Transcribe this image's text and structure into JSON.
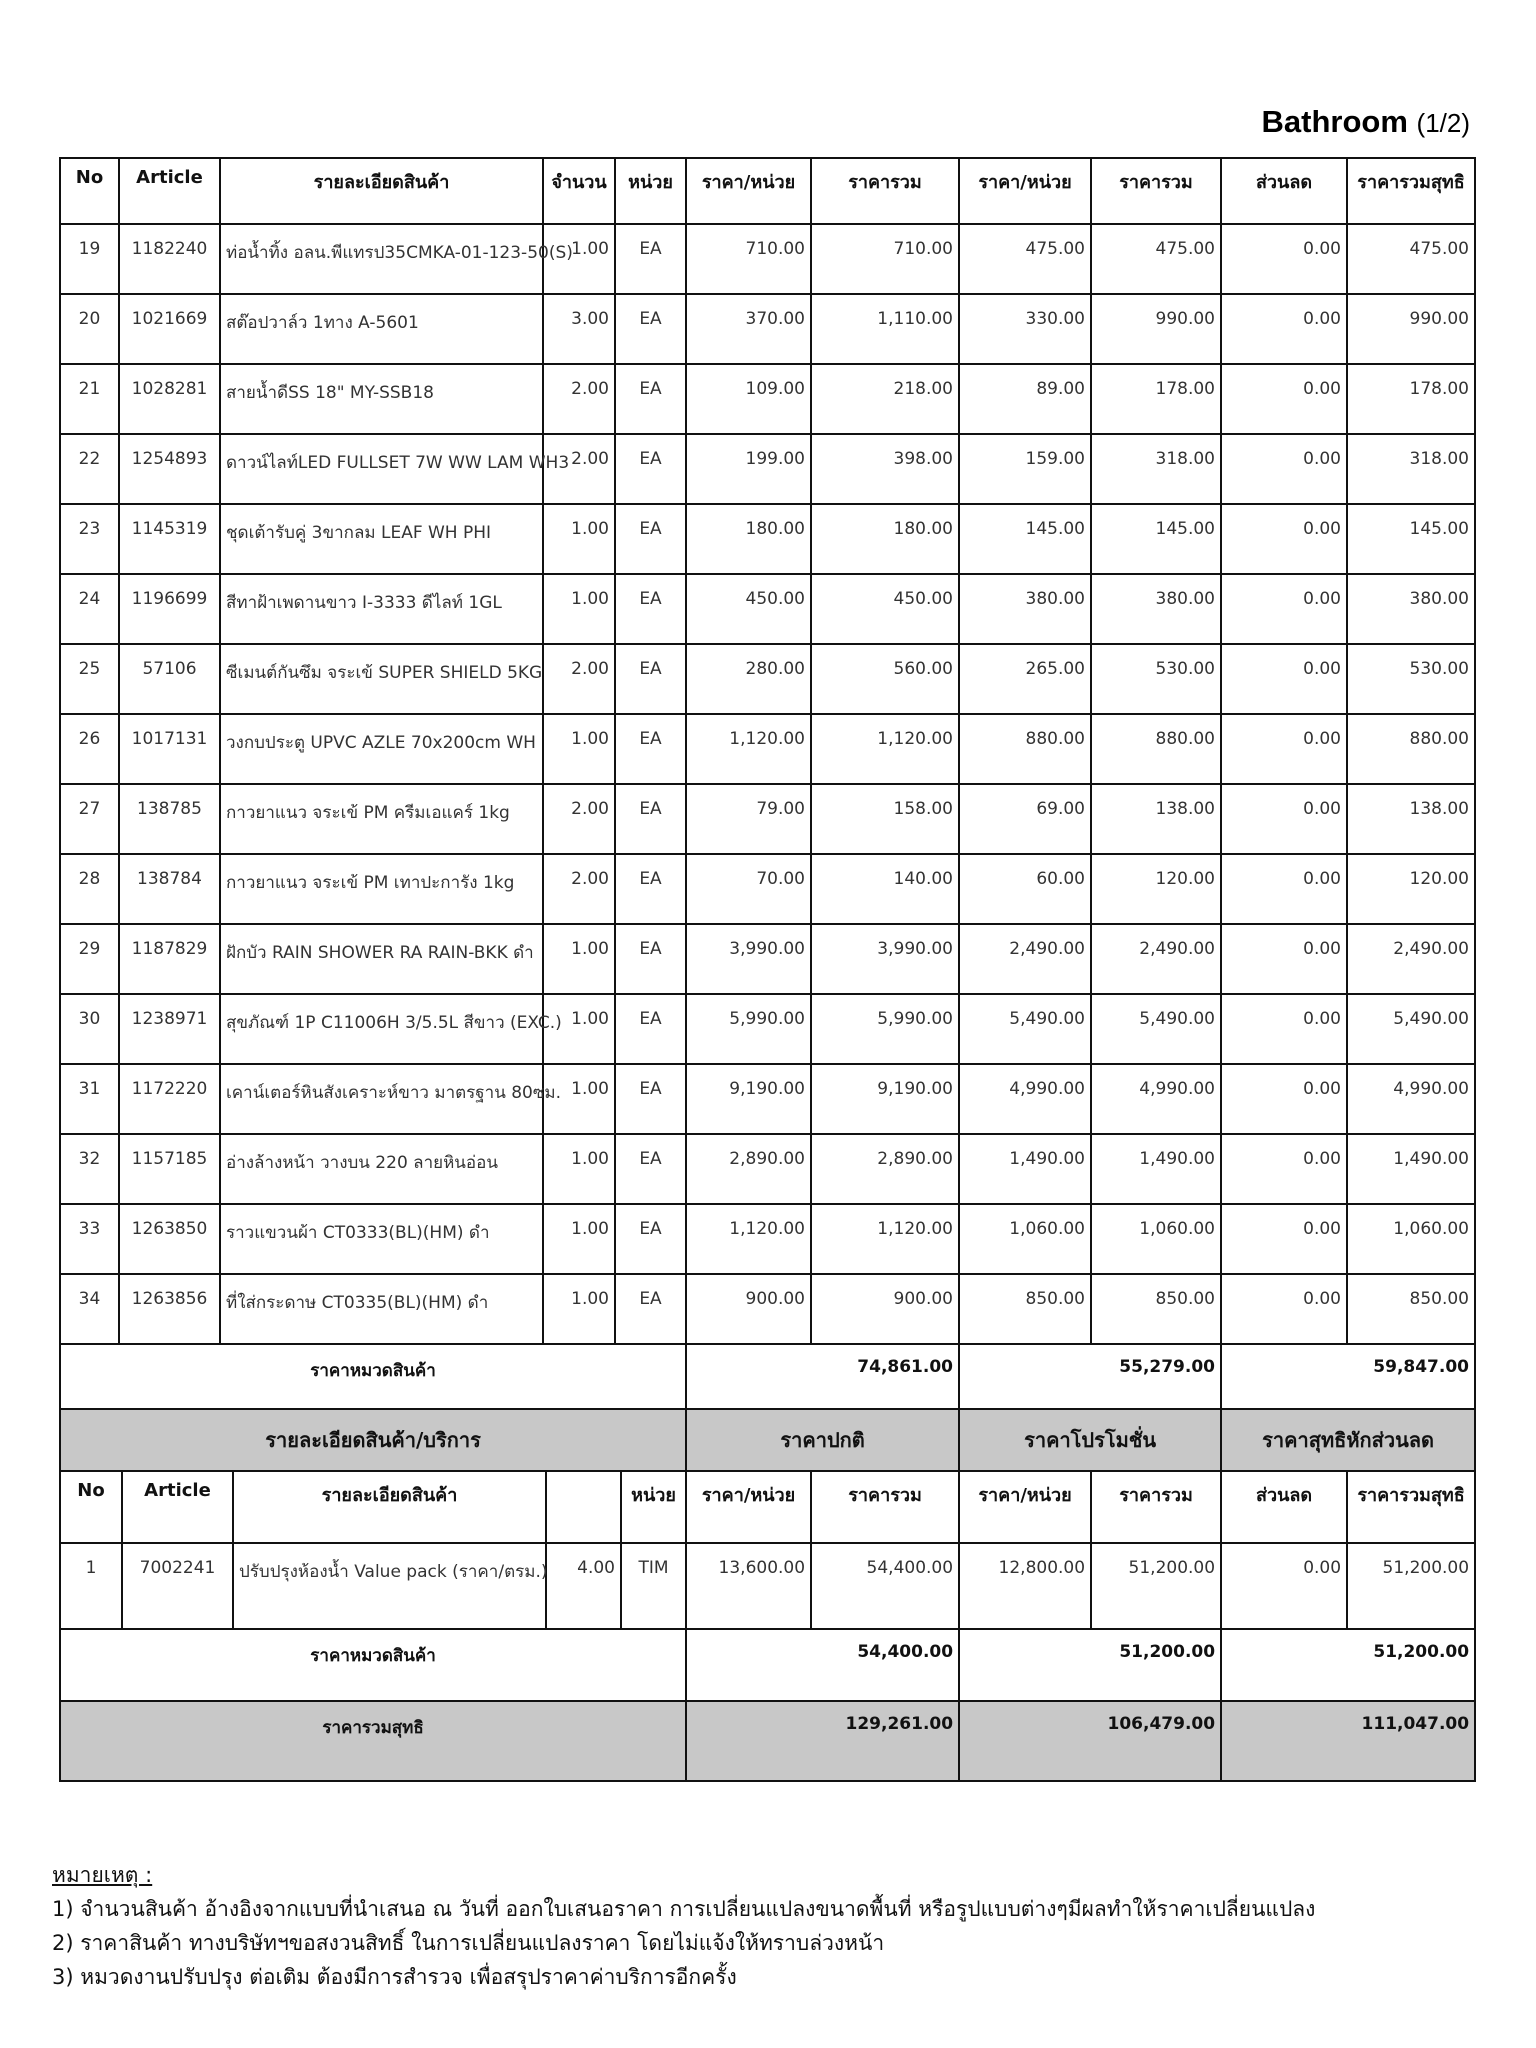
{
  "title": {
    "main": "Bathroom",
    "page": "(1/2)"
  },
  "table1": {
    "headers": [
      "No",
      "Article",
      "รายละเอียดสินค้า",
      "จำนวน",
      "หน่วย",
      "ราคา/หน่วย",
      "ราคารวม",
      "ราคา/หน่วย",
      "ราคารวม",
      "ส่วนลด",
      "ราคารวมสุทธิ"
    ],
    "rows": [
      [
        "19",
        "1182240",
        "ท่อน้ำทิ้ง อลน.พีแทรป35CMKA-01-123-50(S)",
        "1.00",
        "EA",
        "710.00",
        "710.00",
        "475.00",
        "475.00",
        "0.00",
        "475.00"
      ],
      [
        "20",
        "1021669",
        "สต๊อปวาล์ว 1ทาง A-5601",
        "3.00",
        "EA",
        "370.00",
        "1,110.00",
        "330.00",
        "990.00",
        "0.00",
        "990.00"
      ],
      [
        "21",
        "1028281",
        "สายน้ำดีSS 18\" MY-SSB18",
        "2.00",
        "EA",
        "109.00",
        "218.00",
        "89.00",
        "178.00",
        "0.00",
        "178.00"
      ],
      [
        "22",
        "1254893",
        "ดาวน์ไลท์LED FULLSET 7W WW LAM WH3",
        "2.00",
        "EA",
        "199.00",
        "398.00",
        "159.00",
        "318.00",
        "0.00",
        "318.00"
      ],
      [
        "23",
        "1145319",
        "ชุดเต้ารับคู่ 3ขากลม LEAF WH PHI",
        "1.00",
        "EA",
        "180.00",
        "180.00",
        "145.00",
        "145.00",
        "0.00",
        "145.00"
      ],
      [
        "24",
        "1196699",
        "สีทาฝ้าเพดานขาว I-3333 ดีไลท์ 1GL",
        "1.00",
        "EA",
        "450.00",
        "450.00",
        "380.00",
        "380.00",
        "0.00",
        "380.00"
      ],
      [
        "25",
        "57106",
        "ซีเมนต์กันซึม จระเข้ SUPER SHIELD 5KG",
        "2.00",
        "EA",
        "280.00",
        "560.00",
        "265.00",
        "530.00",
        "0.00",
        "530.00"
      ],
      [
        "26",
        "1017131",
        "วงกบประตู UPVC AZLE 70x200cm WH",
        "1.00",
        "EA",
        "1,120.00",
        "1,120.00",
        "880.00",
        "880.00",
        "0.00",
        "880.00"
      ],
      [
        "27",
        "138785",
        "กาวยาแนว จระเข้ PM ครีมเอแคร์ 1kg",
        "2.00",
        "EA",
        "79.00",
        "158.00",
        "69.00",
        "138.00",
        "0.00",
        "138.00"
      ],
      [
        "28",
        "138784",
        "กาวยาแนว จระเข้ PM เทาปะการัง 1kg",
        "2.00",
        "EA",
        "70.00",
        "140.00",
        "60.00",
        "120.00",
        "0.00",
        "120.00"
      ],
      [
        "29",
        "1187829",
        "ฝักบัว RAIN SHOWER RA RAIN-BKK ดำ",
        "1.00",
        "EA",
        "3,990.00",
        "3,990.00",
        "2,490.00",
        "2,490.00",
        "0.00",
        "2,490.00"
      ],
      [
        "30",
        "1238971",
        "สุขภัณฑ์ 1P C11006H 3/5.5L สีขาว (EXC.)",
        "1.00",
        "EA",
        "5,990.00",
        "5,990.00",
        "5,490.00",
        "5,490.00",
        "0.00",
        "5,490.00"
      ],
      [
        "31",
        "1172220",
        "เคาน์เตอร์หินสังเคราะห์ขาว มาตรฐาน 80ซม.",
        "1.00",
        "EA",
        "9,190.00",
        "9,190.00",
        "4,990.00",
        "4,990.00",
        "0.00",
        "4,990.00"
      ],
      [
        "32",
        "1157185",
        "อ่างล้างหน้า วางบน 220 ลายหินอ่อน",
        "1.00",
        "EA",
        "2,890.00",
        "2,890.00",
        "1,490.00",
        "1,490.00",
        "0.00",
        "1,490.00"
      ],
      [
        "33",
        "1263850",
        "ราวแขวนผ้า CT0333(BL)(HM)  ดำ",
        "1.00",
        "EA",
        "1,120.00",
        "1,120.00",
        "1,060.00",
        "1,060.00",
        "0.00",
        "1,060.00"
      ],
      [
        "34",
        "1263856",
        "ที่ใส่กระดาษ CT0335(BL)(HM)  ดำ",
        "1.00",
        "EA",
        "900.00",
        "900.00",
        "850.00",
        "850.00",
        "0.00",
        "850.00"
      ]
    ],
    "subtotal": {
      "label": "ราคาหมวดสินค้า",
      "normal": "74,861.00",
      "promo": "55,279.00",
      "net": "59,847.00"
    }
  },
  "table2": {
    "groups": [
      "รายละเอียดสินค้า/บริการ",
      "ราคาปกติ",
      "ราคาโปรโมชั่น",
      "ราคาสุทธิหักส่วนลด"
    ],
    "headers": [
      "No",
      "Article",
      "รายละเอียดสินค้า",
      "",
      "หน่วย",
      "ราคา/หน่วย",
      "ราคารวม",
      "ราคา/หน่วย",
      "ราคารวม",
      "ส่วนลด",
      "ราคารวมสุทธิ"
    ],
    "rows": [
      [
        "1",
        "7002241",
        "ปรับปรุงห้องน้ำ Value pack (ราคา/ตรม.)",
        "4.00",
        "TIM",
        "13,600.00",
        "54,400.00",
        "12,800.00",
        "51,200.00",
        "0.00",
        "51,200.00"
      ]
    ],
    "subtotal": {
      "label": "ราคาหมวดสินค้า",
      "normal": "54,400.00",
      "promo": "51,200.00",
      "net": "51,200.00"
    },
    "grand_total": {
      "label": "ราคารวมสุทธิ",
      "normal": "129,261.00",
      "promo": "106,479.00",
      "net": "111,047.00"
    }
  },
  "notes": {
    "heading": "หมายเหตุ :",
    "items": [
      "1) จำนวนสินค้า อ้างอิงจากแบบที่นำเสนอ ณ วันที่ ออกใบเสนอราคา การเปลี่ยนแปลงขนาดพื้นที่ หรือรูปแบบต่างๆมีผลทำให้ราคาเปลี่ยนแปลง",
      "2) ราคาสินค้า ทางบริษัทฯขอสงวนสิทธิ์ ในการเปลี่ยนแปลงราคา โดยไม่แจ้งให้ทราบล่วงหน้า",
      "3) หมวดงานปรับปรุง ต่อเติม ต้องมีการสำรวจ เพื่อสรุปราคาค่าบริการอีกครั้ง"
    ]
  }
}
